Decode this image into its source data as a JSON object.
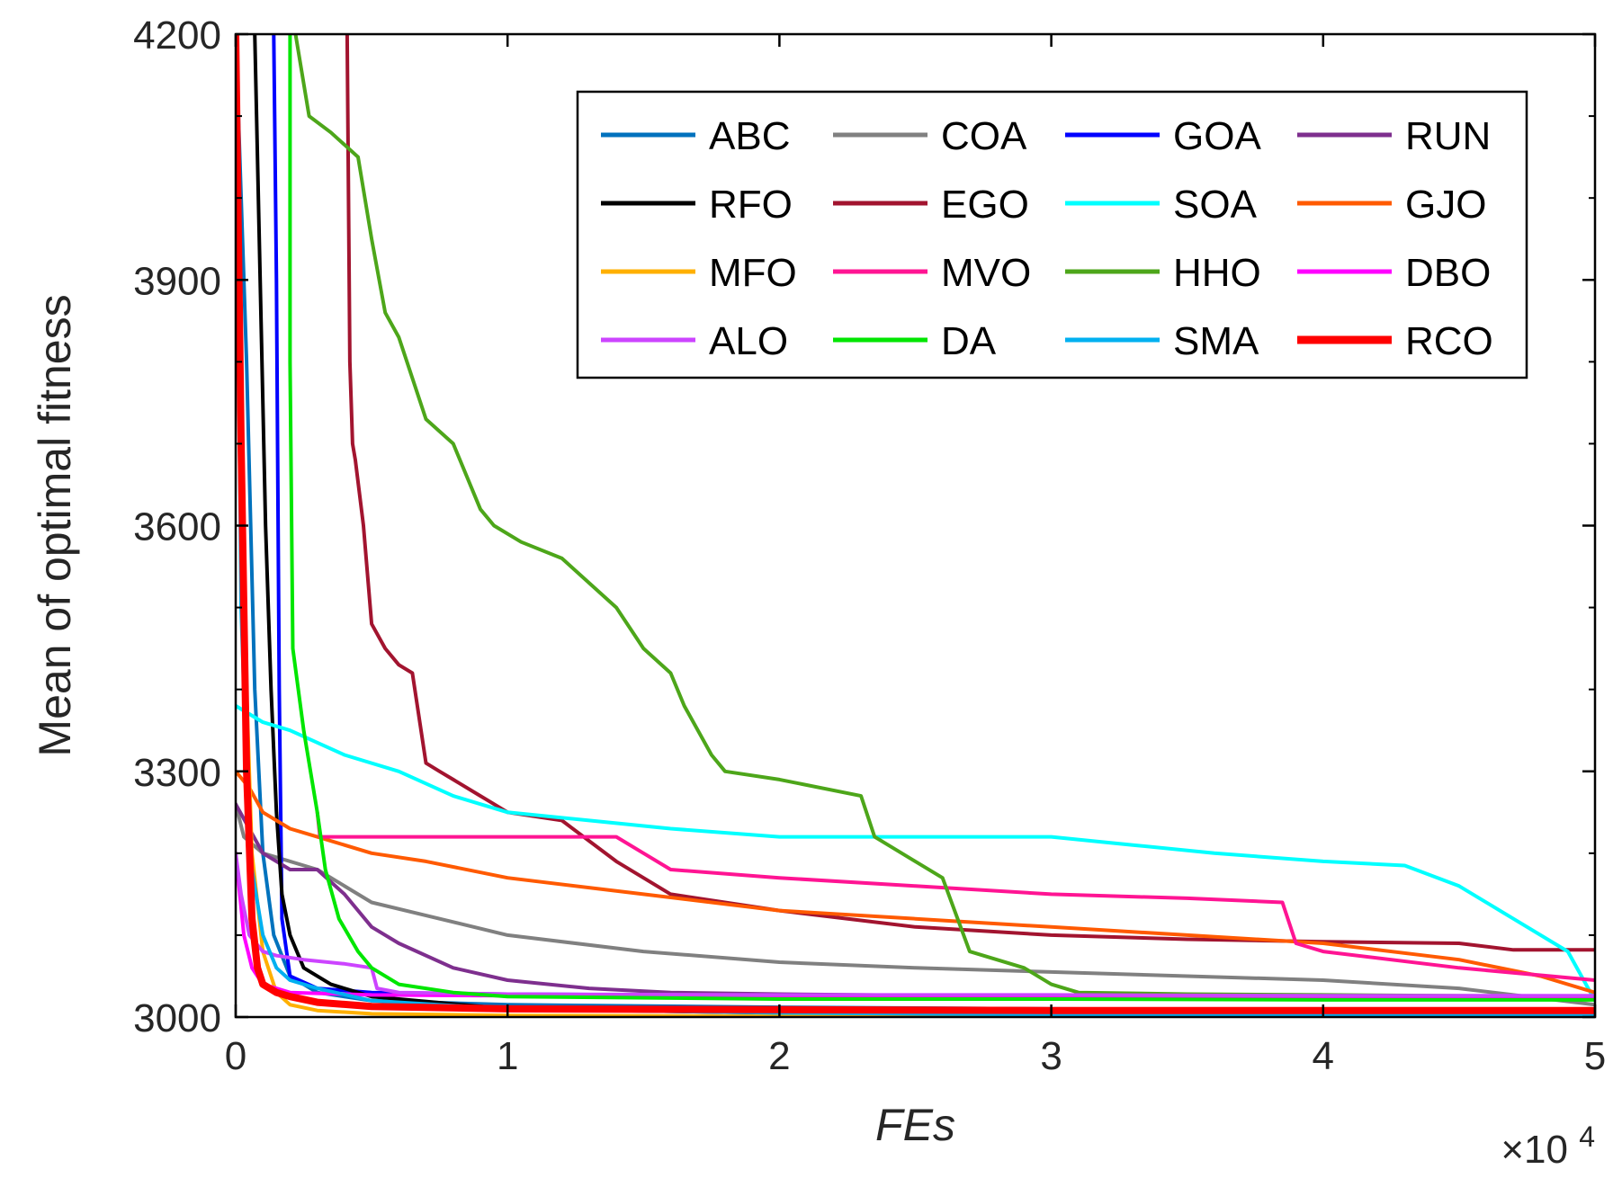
{
  "chart_data": {
    "type": "line",
    "title": "",
    "xlabel": "FEs",
    "ylabel": "Mean of optimal fitness",
    "x_exponent_label": "×10",
    "x_exponent_power": "4",
    "xlim": [
      0,
      5
    ],
    "ylim": [
      3000,
      4200
    ],
    "xticks": [
      0,
      1,
      2,
      3,
      4,
      5
    ],
    "xtick_labels": [
      "0",
      "1",
      "2",
      "3",
      "4",
      "5"
    ],
    "yticks": [
      3000,
      3300,
      3600,
      3900,
      4200
    ],
    "ytick_labels": [
      "3000",
      "3300",
      "3600",
      "3900",
      "4200"
    ],
    "grid": false,
    "legend_position": "top-right",
    "legend_columns": 4,
    "series": [
      {
        "name": "ABC",
        "color": "#0072BD",
        "width": 4,
        "x": [
          0,
          0.04,
          0.07,
          0.1,
          0.14,
          0.2,
          0.3,
          0.5,
          1,
          2,
          3,
          4,
          5
        ],
        "y": [
          4200,
          3800,
          3400,
          3200,
          3100,
          3050,
          3030,
          3020,
          3015,
          3012,
          3010,
          3009,
          3008
        ]
      },
      {
        "name": "COA",
        "color": "#808080",
        "width": 4,
        "x": [
          0,
          0.03,
          0.1,
          0.3,
          0.5,
          1,
          1.5,
          2,
          2.5,
          3,
          3.5,
          4,
          4.5,
          5
        ],
        "y": [
          3260,
          3220,
          3200,
          3180,
          3140,
          3100,
          3080,
          3067,
          3060,
          3055,
          3050,
          3045,
          3035,
          3015
        ]
      },
      {
        "name": "GOA",
        "color": "#0000FF",
        "width": 4,
        "x": [
          0.14,
          0.15,
          0.16,
          0.17,
          0.2,
          0.3,
          0.5,
          1,
          2,
          3,
          4,
          5
        ],
        "y": [
          4200,
          3900,
          3400,
          3120,
          3050,
          3035,
          3030,
          3028,
          3026,
          3025,
          3025,
          3025
        ]
      },
      {
        "name": "RUN",
        "color": "#7E2F8E",
        "width": 4,
        "x": [
          0,
          0.05,
          0.1,
          0.2,
          0.3,
          0.4,
          0.5,
          0.6,
          0.8,
          1,
          1.3,
          1.6,
          2,
          3,
          4,
          5
        ],
        "y": [
          3260,
          3230,
          3200,
          3180,
          3180,
          3150,
          3110,
          3090,
          3060,
          3045,
          3035,
          3030,
          3028,
          3025,
          3024,
          3023
        ]
      },
      {
        "name": "RFO",
        "color": "#000000",
        "width": 4,
        "x": [
          0.07,
          0.09,
          0.11,
          0.13,
          0.15,
          0.17,
          0.2,
          0.25,
          0.35,
          0.5,
          1,
          2,
          3,
          4,
          5
        ],
        "y": [
          4200,
          3900,
          3600,
          3400,
          3250,
          3150,
          3100,
          3060,
          3040,
          3025,
          3010,
          3005,
          3003,
          3002,
          3002
        ]
      },
      {
        "name": "EGO",
        "color": "#A2142F",
        "width": 4,
        "x": [
          0.41,
          0.42,
          0.43,
          0.44,
          0.47,
          0.5,
          0.55,
          0.6,
          0.65,
          0.7,
          0.75,
          0.8,
          0.9,
          1,
          1.2,
          1.4,
          1.6,
          2,
          2.5,
          3,
          3.5,
          4,
          4.5,
          4.7,
          5
        ],
        "y": [
          4200,
          3800,
          3700,
          3680,
          3600,
          3480,
          3450,
          3430,
          3420,
          3310,
          3300,
          3290,
          3270,
          3250,
          3240,
          3190,
          3150,
          3130,
          3110,
          3100,
          3095,
          3092,
          3090,
          3082,
          3082
        ]
      },
      {
        "name": "SOA",
        "color": "#00FFFF",
        "width": 4,
        "x": [
          0,
          0.05,
          0.1,
          0.2,
          0.4,
          0.6,
          0.8,
          1,
          1.3,
          1.6,
          2,
          2.5,
          3,
          3.3,
          3.6,
          4,
          4.3,
          4.5,
          4.7,
          4.9,
          5
        ],
        "y": [
          3380,
          3370,
          3360,
          3350,
          3320,
          3300,
          3270,
          3250,
          3240,
          3230,
          3220,
          3220,
          3220,
          3210,
          3200,
          3190,
          3185,
          3160,
          3120,
          3080,
          3020
        ]
      },
      {
        "name": "GJO",
        "color": "#FF5A00",
        "width": 4,
        "x": [
          0,
          0.05,
          0.1,
          0.2,
          0.3,
          0.5,
          0.7,
          1,
          1.5,
          2,
          2.5,
          3,
          3.5,
          4,
          4.5,
          4.8,
          5
        ],
        "y": [
          3300,
          3280,
          3250,
          3230,
          3220,
          3200,
          3190,
          3170,
          3150,
          3130,
          3120,
          3110,
          3100,
          3090,
          3070,
          3050,
          3030
        ]
      },
      {
        "name": "MFO",
        "color": "#FFB000",
        "width": 4,
        "x": [
          0,
          0.03,
          0.06,
          0.1,
          0.15,
          0.2,
          0.3,
          0.5,
          1,
          2,
          5
        ],
        "y": [
          4200,
          3500,
          3200,
          3080,
          3030,
          3015,
          3008,
          3004,
          3002,
          3001,
          3000
        ]
      },
      {
        "name": "MVO",
        "color": "#FF1493",
        "width": 4,
        "x": [
          0.3,
          0.31,
          1,
          1.4,
          1.5,
          1.6,
          2,
          2.5,
          3,
          3.5,
          3.85,
          3.9,
          4,
          4.5,
          5
        ],
        "y": [
          3250,
          3220,
          3220,
          3220,
          3200,
          3180,
          3170,
          3160,
          3150,
          3145,
          3140,
          3090,
          3080,
          3060,
          3045
        ]
      },
      {
        "name": "HHO",
        "color": "#4DA61A",
        "width": 4,
        "x": [
          0.22,
          0.27,
          0.35,
          0.45,
          0.5,
          0.55,
          0.6,
          0.7,
          0.8,
          0.9,
          0.95,
          1.05,
          1.2,
          1.4,
          1.5,
          1.6,
          1.65,
          1.75,
          1.8,
          2.0,
          2.3,
          2.35,
          2.6,
          2.7,
          2.9,
          3.0,
          3.1,
          3.5,
          4,
          5
        ],
        "y": [
          4200,
          4100,
          4080,
          4050,
          3950,
          3860,
          3830,
          3730,
          3700,
          3620,
          3600,
          3580,
          3560,
          3500,
          3450,
          3420,
          3380,
          3320,
          3300,
          3290,
          3270,
          3220,
          3170,
          3080,
          3060,
          3040,
          3030,
          3028,
          3027,
          3025
        ]
      },
      {
        "name": "DBO",
        "color": "#FF00FF",
        "width": 4,
        "x": [
          0,
          0.03,
          0.06,
          0.1,
          0.2,
          0.5,
          1,
          2,
          3,
          4,
          5
        ],
        "y": [
          3200,
          3100,
          3060,
          3040,
          3030,
          3027,
          3026,
          3025,
          3025,
          3025,
          3025
        ]
      },
      {
        "name": "ALO",
        "color": "#CC44FF",
        "width": 4,
        "x": [
          0,
          0.02,
          0.05,
          0.1,
          0.15,
          0.25,
          0.4,
          0.5,
          0.52,
          0.6,
          1,
          2,
          3,
          4,
          5
        ],
        "y": [
          3200,
          3150,
          3100,
          3080,
          3075,
          3070,
          3065,
          3060,
          3035,
          3030,
          3028,
          3027,
          3027,
          3026,
          3026
        ]
      },
      {
        "name": "DA",
        "color": "#00E600",
        "width": 4,
        "x": [
          0.2,
          0.2,
          0.21,
          0.25,
          0.3,
          0.33,
          0.38,
          0.45,
          0.5,
          0.6,
          0.8,
          1,
          2,
          3,
          4,
          5
        ],
        "y": [
          4200,
          3800,
          3450,
          3350,
          3250,
          3180,
          3120,
          3080,
          3060,
          3040,
          3030,
          3025,
          3022,
          3022,
          3021,
          3021
        ]
      },
      {
        "name": "SMA",
        "color": "#00B0F0",
        "width": 4,
        "x": [
          0,
          0.02,
          0.05,
          0.1,
          0.15,
          0.2,
          0.3,
          0.5,
          1,
          2,
          3,
          5
        ],
        "y": [
          4200,
          3500,
          3200,
          3100,
          3060,
          3045,
          3035,
          3020,
          3010,
          3005,
          3003,
          3002
        ]
      },
      {
        "name": "RCO",
        "color": "#FF0000",
        "width": 8,
        "x": [
          0,
          0.02,
          0.04,
          0.06,
          0.08,
          0.1,
          0.15,
          0.2,
          0.3,
          0.5,
          1,
          2,
          3,
          4,
          5
        ],
        "y": [
          4200,
          3700,
          3300,
          3120,
          3060,
          3040,
          3030,
          3025,
          3018,
          3013,
          3010,
          3009,
          3008,
          3008,
          3008
        ]
      }
    ]
  }
}
